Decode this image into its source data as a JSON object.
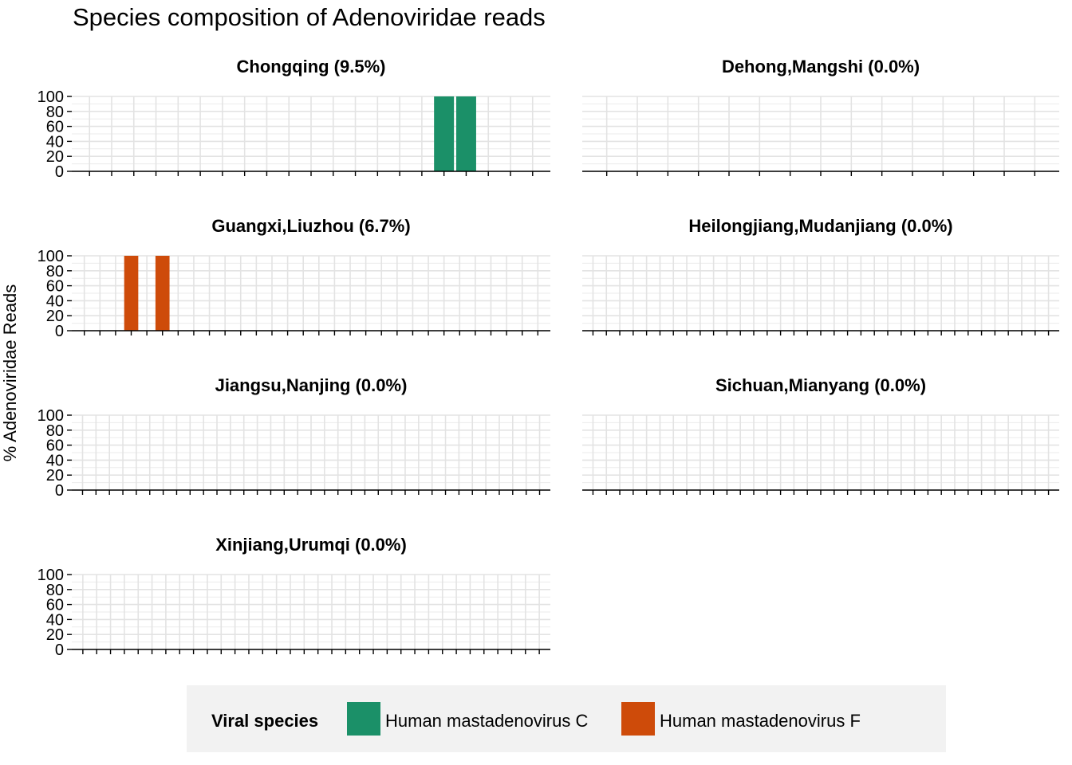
{
  "chart_data": {
    "type": "bar",
    "stacked": true,
    "title": "Species composition of Adenoviridae reads",
    "ylabel": "% Adenoviridae Reads",
    "xlabel": "",
    "ylim": [
      0,
      100
    ],
    "yticks": [
      0,
      20,
      40,
      60,
      80,
      100
    ],
    "grid": true,
    "legend": {
      "title": "Viral species",
      "position": "bottom",
      "entries": [
        {
          "name": "Human mastadenovirus C",
          "color": "#1b9068"
        },
        {
          "name": "Human mastadenovirus F",
          "color": "#ce4b0a"
        }
      ]
    },
    "panels": [
      {
        "title": "Chongqing (9.5%)",
        "n_samples": 21,
        "bars": [
          {
            "sample": 17,
            "species": "Human mastadenovirus C",
            "value": 100
          },
          {
            "sample": 18,
            "species": "Human mastadenovirus C",
            "value": 100
          }
        ]
      },
      {
        "title": "Dehong,Mangshi (0.0%)",
        "n_samples": 15,
        "bars": []
      },
      {
        "title": "Guangxi,Liuzhou (6.7%)",
        "n_samples": 30,
        "bars": [
          {
            "sample": 4,
            "species": "Human mastadenovirus F",
            "value": 100
          },
          {
            "sample": 6,
            "species": "Human mastadenovirus F",
            "value": 100
          }
        ]
      },
      {
        "title": "Heilongjiang,Mudanjiang (0.0%)",
        "n_samples": 35,
        "bars": []
      },
      {
        "title": "Jiangsu,Nanjing (0.0%)",
        "n_samples": 35,
        "bars": []
      },
      {
        "title": "Sichuan,Mianyang (0.0%)",
        "n_samples": 35,
        "bars": []
      },
      {
        "title": "Xinjiang,Urumqi (0.0%)",
        "n_samples": 34,
        "bars": []
      }
    ]
  }
}
